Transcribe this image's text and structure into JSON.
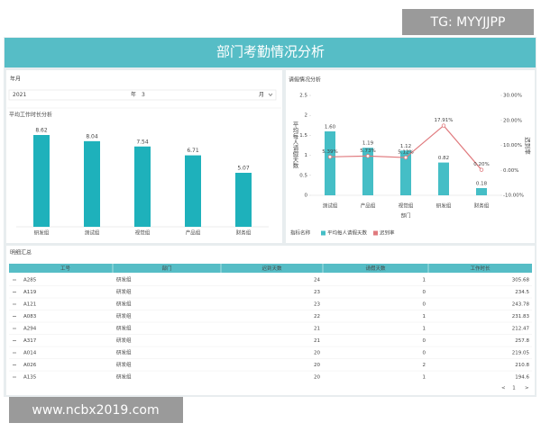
{
  "watermark_top": "TG: MYYJJPP",
  "header": {
    "title": "部门考勤情况分析"
  },
  "filter": {
    "label": "年月",
    "year": "2021",
    "year_unit": "年",
    "month": "3",
    "month_unit": "月"
  },
  "chart_data": [
    {
      "type": "bar",
      "title": "平均工作时长分析",
      "categories": [
        "研发组",
        "测试组",
        "视觉组",
        "产品组",
        "财务组"
      ],
      "values": [
        8.62,
        8.04,
        7.54,
        6.71,
        5.07
      ],
      "color": "#1eb1bb"
    },
    {
      "type": "combo",
      "title": "请假情况分析",
      "categories": [
        "测试组",
        "产品组",
        "视觉组",
        "研发组",
        "财务组"
      ],
      "series": [
        {
          "name": "平均每人请假天数",
          "type": "bar",
          "color": "#45bec6",
          "values": [
            1.6,
            1.19,
            1.12,
            0.82,
            0.18
          ],
          "value_labels": [
            "1.60",
            "1.19",
            "1.12",
            "0.82",
            "0.18"
          ]
        },
        {
          "name": "迟到率",
          "type": "line",
          "axis": "y2",
          "color": "#e07a7e",
          "values": [
            5.39,
            5.73,
            5.12,
            17.91,
            0.2
          ],
          "value_labels": [
            "5.39%",
            "5.73%",
            "5.12%",
            "17.91%",
            "0.20%"
          ]
        }
      ],
      "ylabel": "平均每人请假天数",
      "y2label": "迟到率",
      "xlabel": "部门",
      "legend_title": "指标名称",
      "ylim": [
        0,
        2.5
      ],
      "yticks": [
        0,
        0.5,
        1,
        1.5,
        2,
        2.5
      ],
      "y2lim": [
        -10,
        30
      ],
      "y2ticks": [
        {
          "value": -10,
          "label": "-10.00%"
        },
        {
          "value": 0,
          "label": "0.00%"
        },
        {
          "value": 10,
          "label": "10.00%"
        },
        {
          "value": 20,
          "label": "20.00%"
        },
        {
          "value": 30,
          "label": "30.00%"
        }
      ]
    }
  ],
  "table": {
    "title": "明细汇总",
    "columns": [
      "工号",
      "部门",
      "迟到天数",
      "请假天数",
      "工作时长"
    ],
    "rows": [
      [
        "A285",
        "研发组",
        24,
        1,
        305.68
      ],
      [
        "A119",
        "研发组",
        23,
        0,
        234.5
      ],
      [
        "A121",
        "研发组",
        23,
        0,
        243.78
      ],
      [
        "A083",
        "研发组",
        22,
        1,
        231.83
      ],
      [
        "A294",
        "研发组",
        21,
        1,
        212.47
      ],
      [
        "A317",
        "研发组",
        21,
        0,
        257.8
      ],
      [
        "A014",
        "研发组",
        20,
        0,
        219.05
      ],
      [
        "A026",
        "研发组",
        20,
        2,
        210.8
      ],
      [
        "A135",
        "研发组",
        20,
        1,
        194.6
      ]
    ]
  },
  "pagination": {
    "page": "1"
  },
  "watermark_bottom": "www.ncbx2019.com"
}
